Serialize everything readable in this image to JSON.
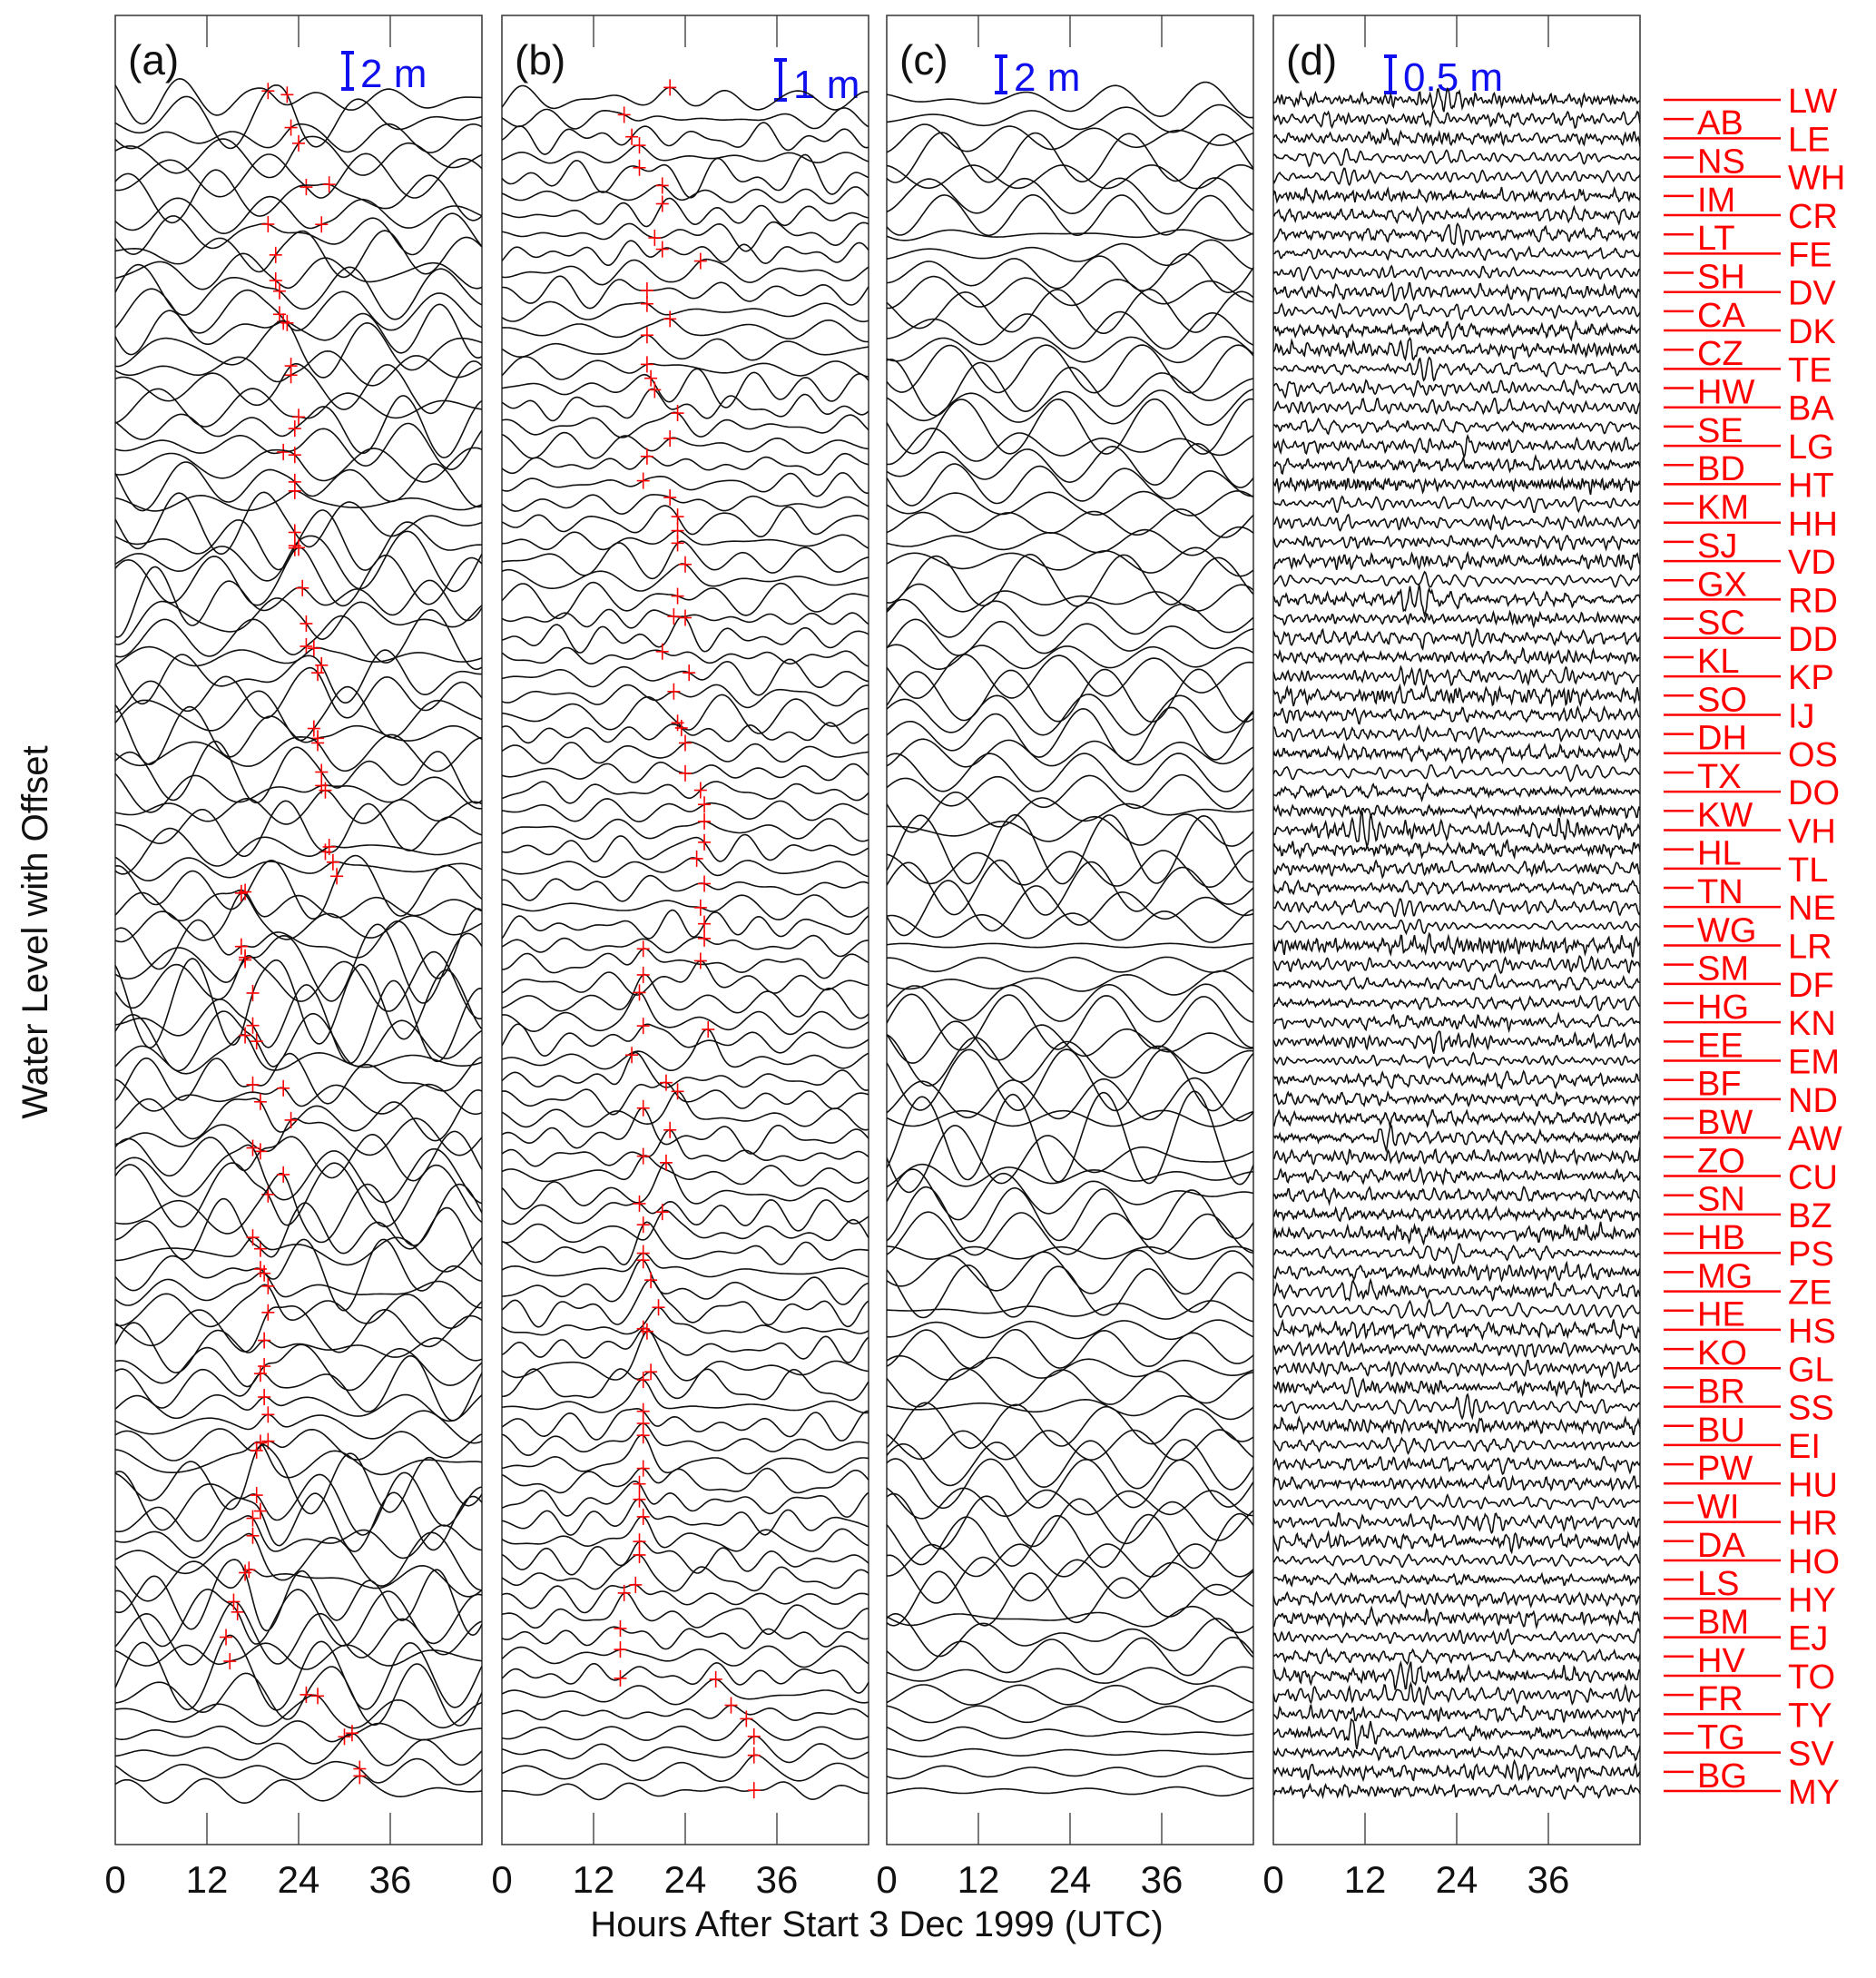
{
  "chart_data": {
    "type": "line",
    "subtype": "multi-panel offset waveform section (record section)",
    "xlabel": "Hours After Start 3 Dec 1999 (UTC)",
    "ylabel": "Water Level with Offset",
    "xlim": [
      0,
      48
    ],
    "x_ticks": [
      0,
      12,
      24,
      36
    ],
    "x_tick_labels": [
      "0",
      "12",
      "24",
      "36"
    ],
    "grid": false,
    "pick_marker_color": "#ff0000",
    "station_label_color": "#ff0000",
    "scale_bar_color": "#1010ee",
    "trace_color": "#111111",
    "panels": [
      {
        "label": "(a)",
        "scale_text": "2 m",
        "scale_m": 2,
        "kind": "raw"
      },
      {
        "label": "(b)",
        "scale_text": "1 m",
        "scale_m": 1,
        "kind": "filtered"
      },
      {
        "label": "(c)",
        "scale_text": "2 m",
        "scale_m": 2,
        "kind": "tide"
      },
      {
        "label": "(d)",
        "scale_text": "0.5 m",
        "scale_m": 0.5,
        "kind": "highpass"
      }
    ],
    "stations_right": [
      "LW",
      "LE",
      "WH",
      "CR",
      "FE",
      "DV",
      "DK",
      "TE",
      "BA",
      "LG",
      "HT",
      "HH",
      "VD",
      "RD",
      "DD",
      "KP",
      "IJ",
      "OS",
      "DO",
      "VH",
      "TL",
      "NE",
      "LR",
      "DF",
      "KN",
      "EM",
      "ND",
      "AW",
      "CU",
      "BZ",
      "PS",
      "ZE",
      "HS",
      "GL",
      "SS",
      "EI",
      "HU",
      "HR",
      "HO",
      "HY",
      "EJ",
      "TO",
      "TY",
      "SV",
      "MY"
    ],
    "stations_left": [
      "AB",
      "NS",
      "IM",
      "LT",
      "SH",
      "CA",
      "CZ",
      "HW",
      "SE",
      "BD",
      "KM",
      "SJ",
      "GX",
      "SC",
      "KL",
      "SO",
      "DH",
      "TX",
      "KW",
      "HL",
      "TN",
      "WG",
      "SM",
      "HG",
      "EE",
      "BF",
      "BW",
      "ZO",
      "SN",
      "HB",
      "MG",
      "HE",
      "KO",
      "BR",
      "BU",
      "PW",
      "WI",
      "DA",
      "LS",
      "BM",
      "HV",
      "FR",
      "TG",
      "BG"
    ],
    "picks_hours_panel_a": [
      20,
      22.5,
      23,
      24,
      25,
      28,
      27,
      20,
      21,
      21,
      21.5,
      21.5,
      22,
      22.5,
      23,
      23,
      24,
      23.5,
      22,
      23.5,
      23.5,
      23.5,
      23.5,
      23.5,
      23.5,
      24,
      24.5,
      25,
      25,
      26,
      27,
      26.5,
      26,
      26.5,
      26.5,
      27,
      27,
      27.5,
      27.5,
      28,
      28.5,
      29,
      17,
      16.5,
      16.5,
      17,
      17,
      18,
      18,
      18.5,
      17,
      18,
      22,
      19,
      23,
      19,
      18,
      20,
      22,
      19,
      18,
      19,
      19.5,
      20,
      20,
      19.5,
      19.5,
      19,
      19.5,
      20,
      20,
      19,
      18.5,
      18.5,
      19,
      18,
      18,
      17.5,
      17,
      16,
      15.5,
      15,
      14.5,
      25,
      26.5,
      30,
      31,
      32,
      32,
      32,
      32
    ],
    "picks_hours_panel_b": [
      22,
      16,
      17,
      18,
      18,
      21,
      21,
      20,
      21,
      26,
      19,
      19,
      22,
      19,
      19,
      19.5,
      20,
      23,
      22,
      19,
      18.5,
      22,
      23,
      23,
      23,
      24,
      23,
      22.5,
      24,
      21,
      24.5,
      22.5,
      23,
      23.5,
      24,
      24,
      26,
      26.5,
      26.5,
      26.5,
      25.5,
      26.5,
      26,
      26.5,
      26.5,
      18.5,
      26,
      18.5,
      18,
      18.5,
      27,
      17,
      21.5,
      23,
      18.5,
      22,
      18.5,
      21.5,
      18,
      21,
      18.5,
      18.5,
      18.5,
      19.5,
      20.5,
      18.5,
      19,
      19.5,
      18.5,
      18.5,
      18.5,
      18.5,
      18.5,
      18,
      18,
      18.5,
      18,
      18,
      17.5,
      16,
      15.5,
      15.5,
      15.5,
      28,
      30,
      32,
      33,
      33,
      33,
      33,
      33,
      33
    ]
  }
}
